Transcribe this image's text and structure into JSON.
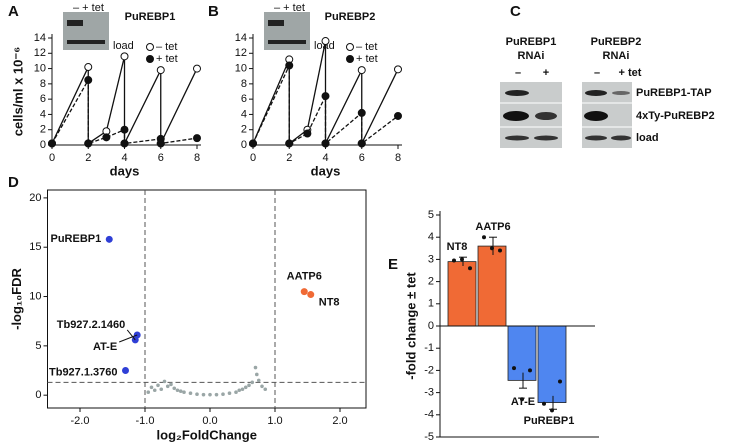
{
  "chart_data": [
    {
      "type": "line",
      "panel": "A",
      "title": "PuREBP1",
      "xlabel": "days",
      "ylabel": "cells/ml x 10⁻⁶",
      "inset": {
        "lanes": "–  + tet",
        "label": "load"
      },
      "x": [
        0,
        2,
        2,
        3,
        4,
        4,
        6,
        6,
        8
      ],
      "series": [
        {
          "name": "– tet",
          "color": "#111111",
          "marker": "open",
          "dash": false,
          "values": [
            0.2,
            10.2,
            0.2,
            1.8,
            11.6,
            0.2,
            9.8,
            0.2,
            10
          ]
        },
        {
          "name": "+ tet",
          "color": "#111111",
          "marker": "filled",
          "dash": true,
          "values": [
            0.2,
            8.5,
            0.2,
            1.0,
            2.0,
            0.2,
            0.8,
            0.2,
            0.9
          ]
        }
      ],
      "xlim": [
        0,
        8
      ],
      "xticks": [
        0,
        2,
        4,
        6,
        8
      ],
      "ylim": [
        0,
        14
      ],
      "yticks": [
        0,
        2,
        4,
        6,
        8,
        10,
        12,
        14
      ]
    },
    {
      "type": "line",
      "panel": "B",
      "title": "PuREBP2",
      "xlabel": "days",
      "inset": {
        "lanes": "–  + tet",
        "label": "load"
      },
      "x": [
        0,
        2,
        2,
        3,
        4,
        4,
        6,
        6,
        8
      ],
      "series": [
        {
          "name": "– tet",
          "color": "#111111",
          "marker": "open",
          "dash": false,
          "values": [
            0.2,
            11.2,
            0.2,
            2.0,
            13.6,
            0.2,
            9.8,
            0.2,
            9.9
          ]
        },
        {
          "name": "+ tet",
          "color": "#111111",
          "marker": "filled",
          "dash": true,
          "values": [
            0.2,
            10.4,
            0.2,
            1.5,
            6.4,
            0.2,
            4.2,
            0.2,
            3.8
          ]
        }
      ],
      "xlim": [
        0,
        8
      ],
      "xticks": [
        0,
        2,
        4,
        6,
        8
      ],
      "ylim": [
        0,
        14
      ],
      "yticks": [
        0,
        2,
        4,
        6,
        8,
        10,
        12,
        14
      ]
    },
    {
      "type": "scatter",
      "panel": "D",
      "xlabel": "log₂FoldChange",
      "ylabel": "-log₁₀FDR",
      "vlines": [
        -1,
        1
      ],
      "hline": 1.3,
      "series": [
        {
          "color": "#2f3fd6",
          "x": [
            -1.55,
            -1.12,
            -1.15,
            -1.3
          ],
          "values": [
            15.8,
            6.1,
            5.6,
            2.5
          ],
          "labels": [
            "PuREBP1",
            "AT-E",
            "Tb927.2.1460",
            "Tb927.1.3760"
          ]
        },
        {
          "color": "#f06a35",
          "x": [
            1.45,
            1.55
          ],
          "values": [
            10.5,
            10.2
          ],
          "labels": [
            "AATP6",
            "NT8"
          ]
        },
        {
          "color": "#9aa6a6",
          "x": [
            -0.95,
            -0.9,
            -0.85,
            -0.8,
            -0.75,
            -0.7,
            -0.65,
            -0.6,
            -0.55,
            -0.5,
            -0.45,
            -0.4,
            -0.3,
            -0.2,
            -0.1,
            0,
            0.1,
            0.2,
            0.3,
            0.4,
            0.45,
            0.5,
            0.55,
            0.6,
            0.65,
            0.7,
            0.72,
            0.75,
            0.8,
            0.85
          ],
          "values": [
            0.3,
            0.8,
            0.5,
            1.0,
            0.6,
            1.4,
            0.9,
            1.1,
            0.7,
            0.5,
            0.4,
            0.3,
            0.2,
            0.1,
            0.05,
            0.05,
            0.05,
            0.1,
            0.2,
            0.3,
            0.5,
            0.6,
            0.8,
            1.0,
            1.3,
            2.8,
            2.1,
            1.5,
            0.9,
            0.6
          ]
        }
      ],
      "xlim": [
        -2.5,
        2.4
      ],
      "xticks": [
        {
          "value": -2,
          "label": "-2.0"
        },
        {
          "value": -1,
          "label": "-1.0"
        },
        {
          "value": 0,
          "label": "0.0"
        },
        {
          "value": 1,
          "label": "1.0"
        },
        {
          "value": 2,
          "label": "2.0"
        }
      ],
      "ylim": [
        -1.3,
        20.8
      ],
      "yticks": [
        0,
        5,
        10,
        15,
        20
      ]
    },
    {
      "type": "bar",
      "panel": "E",
      "ylabel": "-fold change ± tet",
      "categories": [
        "NT8",
        "AATP6",
        "AT-E",
        "PuREBP1"
      ],
      "values": [
        2.9,
        3.6,
        -2.45,
        -3.45
      ],
      "errors": [
        0.2,
        0.4,
        0.35,
        0.3
      ],
      "colors": [
        "#f06a35",
        "#f06a35",
        "#4f86f0",
        "#4f86f0"
      ],
      "replicates": [
        [
          2.95,
          3.0,
          2.6
        ],
        [
          4.0,
          3.5,
          3.4
        ],
        [
          -1.9,
          -3.3,
          -2.0
        ],
        [
          -3.5,
          -3.8,
          -2.5
        ]
      ],
      "ylim": [
        -5,
        5
      ],
      "yticks": [
        -5,
        -4,
        -3,
        -2,
        -1,
        0,
        1,
        2,
        3,
        4,
        5
      ]
    }
  ],
  "blot": {
    "panel": "C",
    "groups": [
      {
        "title": [
          "PuREBP1",
          "RNAi"
        ],
        "lanes": [
          "–",
          "+"
        ]
      },
      {
        "title": [
          "PuREBP2",
          "RNAi"
        ],
        "lanes": [
          "–",
          "+ tet"
        ]
      }
    ],
    "bands": [
      "PuREBP1-TAP",
      "4xTy-PuREBP2",
      "load"
    ]
  }
}
